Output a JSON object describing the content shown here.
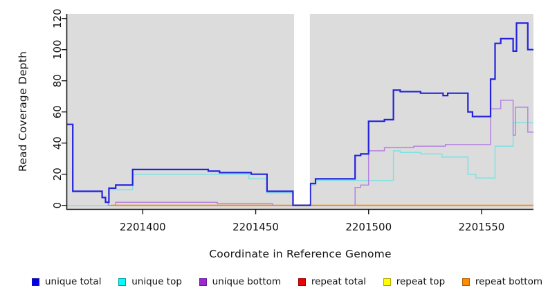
{
  "figure": {
    "xlabel": "Coordinate in Reference Genome",
    "ylabel": "Read Coverage Depth",
    "background_color": "#ffffff",
    "plot_background_color": "#dcdcdc",
    "gap_band_color": "#ffffff",
    "axis_color": "#1a1a1a"
  },
  "legend": [
    {
      "label": "unique total",
      "fill": "#0000ee",
      "border": "#1515a0"
    },
    {
      "label": "unique top",
      "fill": "#00ffff",
      "border": "#00a0a0"
    },
    {
      "label": "unique bottom",
      "fill": "#9a2acd",
      "border": "#6a1b9a"
    },
    {
      "label": "repeat total",
      "fill": "#ee0000",
      "border": "#990000"
    },
    {
      "label": "repeat top",
      "fill": "#ffff00",
      "border": "#b0a800"
    },
    {
      "label": "repeat bottom",
      "fill": "#ff8c00",
      "border": "#b05f00"
    }
  ],
  "chart_data": {
    "type": "line",
    "step": true,
    "title": "",
    "xlabel": "Coordinate in Reference Genome",
    "ylabel": "Read Coverage Depth",
    "xlim": [
      2201366.5,
      2201573
    ],
    "ylim": [
      0,
      120
    ],
    "x_ticks": [
      2201400,
      2201450,
      2201500,
      2201550
    ],
    "y_ticks": [
      0,
      20,
      40,
      60,
      80,
      100,
      120
    ],
    "grid": false,
    "legend_position": "bottom",
    "gap_region": {
      "from": 2201467,
      "to": 2201474
    },
    "series": [
      {
        "name": "repeat total",
        "color": "#dd2222",
        "width": 1.2,
        "points": [
          [
            2201386,
            0
          ],
          [
            2201573,
            0
          ]
        ]
      },
      {
        "name": "repeat top",
        "color": "#f0f000",
        "width": 1.2,
        "points": [
          [
            2201386,
            0
          ],
          [
            2201573,
            0
          ]
        ]
      },
      {
        "name": "repeat bottom",
        "color": "#ff8c00",
        "width": 2,
        "points": [
          [
            2201386,
            0
          ],
          [
            2201573,
            0
          ]
        ]
      },
      {
        "name": "unique top",
        "color": "#7de2e2",
        "width": 1.5,
        "points": [
          [
            2201366.5,
            0
          ],
          [
            2201385,
            10
          ],
          [
            2201395.5,
            20
          ],
          [
            2201447,
            17
          ],
          [
            2201455,
            8
          ],
          [
            2201466.5,
            0
          ],
          [
            2201474.2,
            13
          ],
          [
            2201476.5,
            16
          ],
          [
            2201511,
            35
          ],
          [
            2201514,
            34
          ],
          [
            2201523,
            33
          ],
          [
            2201532.5,
            31
          ],
          [
            2201544,
            20
          ],
          [
            2201547.5,
            17.5
          ],
          [
            2201556,
            38
          ],
          [
            2201564,
            53
          ],
          [
            2201573,
            53
          ]
        ]
      },
      {
        "name": "unique bottom",
        "color": "#b583dd",
        "width": 1.5,
        "points": [
          [
            2201366.5,
            52
          ],
          [
            2201369,
            9
          ],
          [
            2201382,
            5
          ],
          [
            2201383.5,
            2
          ],
          [
            2201384.7,
            0
          ],
          [
            2201388,
            2
          ],
          [
            2201433,
            1
          ],
          [
            2201457.5,
            0
          ],
          [
            2201494,
            11.5
          ],
          [
            2201496.5,
            13
          ],
          [
            2201500,
            35
          ],
          [
            2201507,
            37
          ],
          [
            2201520,
            38
          ],
          [
            2201534,
            39
          ],
          [
            2201554,
            62
          ],
          [
            2201558.5,
            67.5
          ],
          [
            2201564,
            45
          ],
          [
            2201565,
            63
          ],
          [
            2201570.5,
            47
          ],
          [
            2201573,
            47
          ]
        ]
      },
      {
        "name": "unique total",
        "color": "#2323dd",
        "width": 2.2,
        "points": [
          [
            2201366.5,
            52
          ],
          [
            2201369,
            9
          ],
          [
            2201382,
            5
          ],
          [
            2201383.5,
            2
          ],
          [
            2201385,
            11
          ],
          [
            2201388,
            13
          ],
          [
            2201395.5,
            23
          ],
          [
            2201429,
            22
          ],
          [
            2201434,
            21
          ],
          [
            2201448,
            20
          ],
          [
            2201455,
            9
          ],
          [
            2201466.5,
            0
          ],
          [
            2201474.2,
            14
          ],
          [
            2201476.5,
            17
          ],
          [
            2201494,
            32
          ],
          [
            2201496.5,
            33
          ],
          [
            2201500,
            54
          ],
          [
            2201507,
            55
          ],
          [
            2201511,
            74
          ],
          [
            2201514,
            73
          ],
          [
            2201523,
            72
          ],
          [
            2201533,
            70.5
          ],
          [
            2201535,
            72
          ],
          [
            2201544,
            60
          ],
          [
            2201546,
            57
          ],
          [
            2201554,
            81
          ],
          [
            2201556,
            104
          ],
          [
            2201558.5,
            107
          ],
          [
            2201564,
            99
          ],
          [
            2201565.5,
            117
          ],
          [
            2201570.5,
            100
          ],
          [
            2201573,
            100
          ]
        ]
      }
    ]
  }
}
